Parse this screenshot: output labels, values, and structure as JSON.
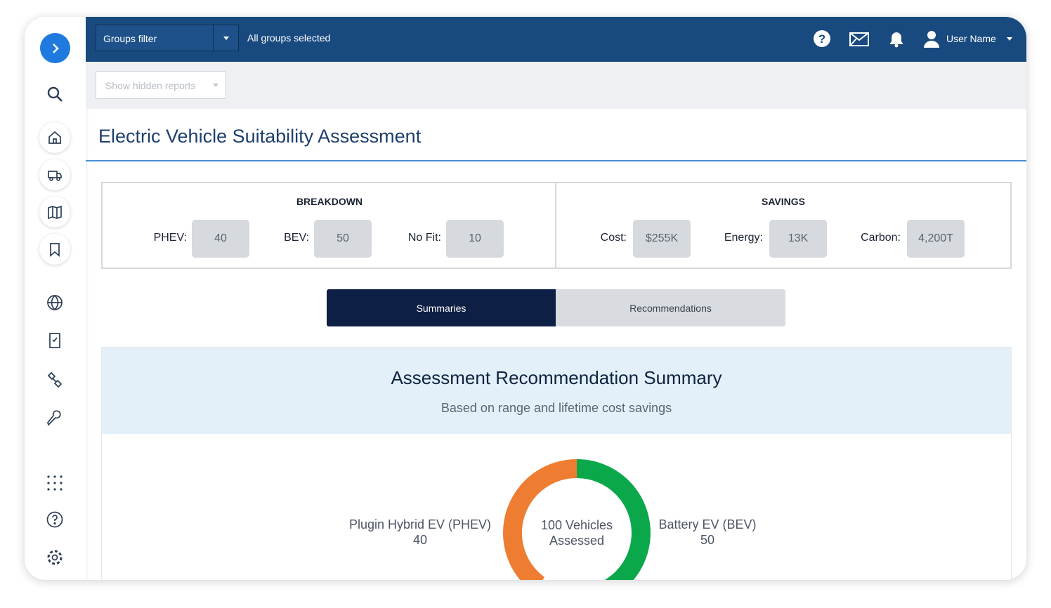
{
  "topbar": {
    "groups_filter": "Groups filter",
    "groups_status": "All groups selected",
    "user": "User Name"
  },
  "toolbar": {
    "hidden_reports": "Show hidden reports"
  },
  "page_title": "Electric Vehicle Suitability Assessment",
  "breakdown": {
    "title": "BREAKDOWN",
    "items": [
      {
        "label": "PHEV:",
        "value": 40
      },
      {
        "label": "BEV:",
        "value": 50
      },
      {
        "label": "No Fit:",
        "value": 10
      }
    ]
  },
  "savings": {
    "title": "SAVINGS",
    "items": [
      {
        "label": "Cost:",
        "value": "$255K"
      },
      {
        "label": "Energy:",
        "value": "13K"
      },
      {
        "label": "Carbon:",
        "value": "4,200T"
      }
    ]
  },
  "tabs": [
    "Summaries",
    "Recommendations"
  ],
  "summary": {
    "title": "Assessment Recommendation Summary",
    "subtitle": "Based on range and lifetime cost savings",
    "center_label": "100 Vehicles Assessed",
    "segments": [
      {
        "name": "Plugin Hybrid EV (PHEV)",
        "value": 40,
        "color": "#ee7d31"
      },
      {
        "name": "Battery EV (BEV)",
        "value": 50,
        "color": "#0aa84b"
      }
    ]
  }
}
